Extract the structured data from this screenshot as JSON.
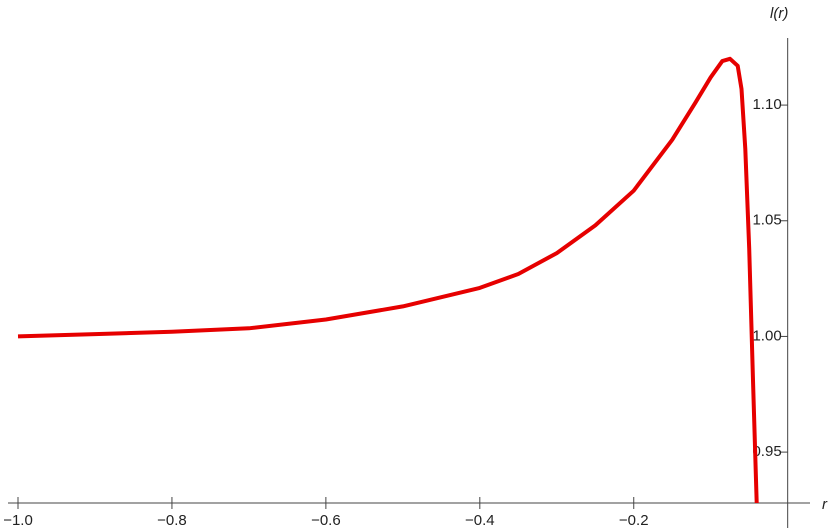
{
  "chart_data": {
    "type": "line",
    "x_label": "r",
    "y_label": "l(r)",
    "x": [
      -1.0,
      -0.9,
      -0.8,
      -0.7,
      -0.6,
      -0.5,
      -0.4,
      -0.35,
      -0.3,
      -0.25,
      -0.2,
      -0.15,
      -0.12,
      -0.1,
      -0.085,
      -0.075,
      -0.065,
      -0.06,
      -0.055,
      -0.05,
      -0.045,
      -0.0403
    ],
    "series": [
      {
        "color": "#e60000",
        "values": [
          1.0,
          1.001,
          1.002,
          1.0035,
          1.0073,
          1.013,
          1.021,
          1.027,
          1.036,
          1.048,
          1.063,
          1.085,
          1.101,
          1.112,
          1.119,
          1.12,
          1.117,
          1.107,
          1.081,
          1.038,
          0.981,
          0.928
        ]
      }
    ],
    "xlim": [
      -1.013,
      0.029
    ],
    "ylim": [
      0.928,
      1.129
    ],
    "xticks": [
      {
        "value": -1.0,
        "label": "−1.0"
      },
      {
        "value": -0.8,
        "label": "−0.8"
      },
      {
        "value": -0.6,
        "label": "−0.6"
      },
      {
        "value": -0.4,
        "label": "−0.4"
      },
      {
        "value": -0.2,
        "label": "−0.2"
      }
    ],
    "yticks": [
      0.95,
      {
        "value": 1.0,
        "label": "1.00"
      },
      1.05,
      {
        "value": 1.1,
        "label": "1.10"
      }
    ]
  }
}
